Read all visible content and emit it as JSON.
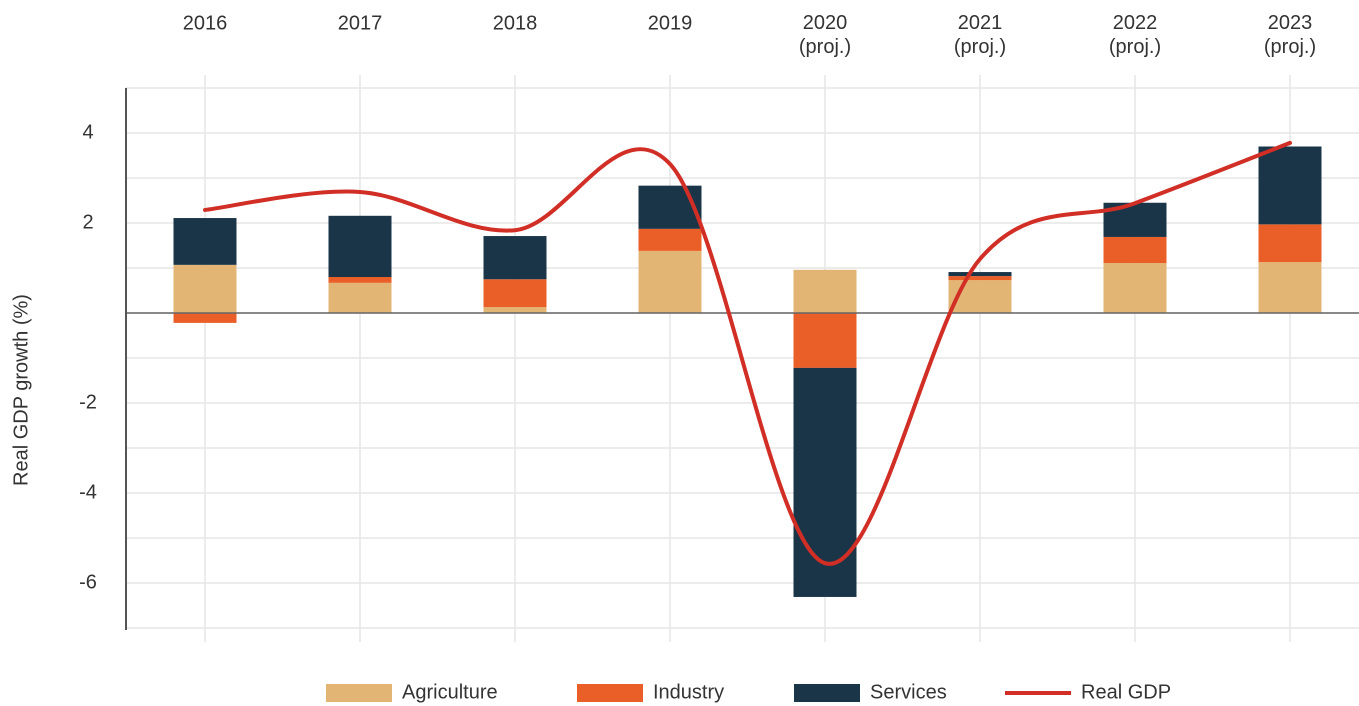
{
  "chart_data": {
    "type": "stacked_bar_line",
    "y_label": "Real GDP growth (%)",
    "categories": [
      "2016",
      "2017",
      "2018",
      "2019",
      "2020\n(proj.)",
      "2021\n(proj.)",
      "2022\n(proj.)",
      "2023\n(proj.)"
    ],
    "series": [
      {
        "name": "Agriculture",
        "type": "bar",
        "color": "#e3b574",
        "values": [
          1.07,
          0.67,
          0.13,
          1.38,
          0.96,
          0.73,
          1.11,
          1.13
        ]
      },
      {
        "name": "Industry",
        "type": "bar",
        "color": "#ea5f28",
        "values": [
          -0.22,
          0.13,
          0.62,
          0.49,
          -1.22,
          0.09,
          0.58,
          0.84
        ]
      },
      {
        "name": "Services",
        "type": "bar",
        "color": "#1a3547",
        "values": [
          1.04,
          1.36,
          0.96,
          0.96,
          -5.09,
          0.09,
          0.76,
          1.73
        ]
      },
      {
        "name": "Real GDP",
        "type": "line",
        "color": "#d12e26",
        "values": [
          2.29,
          2.69,
          1.84,
          3.31,
          -5.56,
          1.2,
          2.44,
          3.78
        ]
      }
    ],
    "ylim": [
      -7,
      5
    ],
    "yticks": [
      -6,
      -4,
      -2,
      2,
      4
    ],
    "minor_grid": [
      -7,
      -5,
      -3,
      -1,
      0,
      1,
      3,
      5
    ],
    "grid": true,
    "legend": "bottom"
  }
}
